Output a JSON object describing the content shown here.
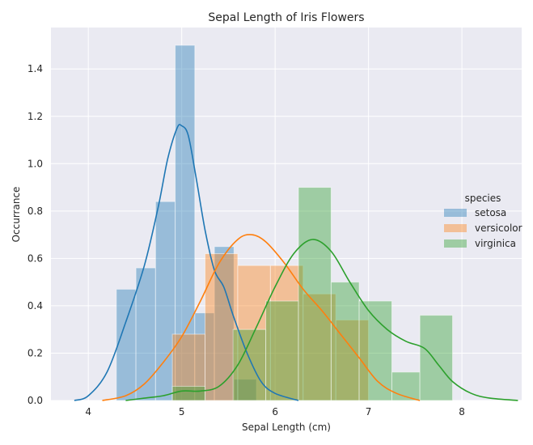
{
  "chart_data": {
    "type": "histogram",
    "title": "Sepal Length of Iris Flowers",
    "xlabel": "Sepal Length (cm)",
    "ylabel": "Occurrance",
    "xlim": [
      3.6,
      8.64
    ],
    "ylim": [
      0,
      1.575
    ],
    "xticks": [
      4,
      5,
      6,
      7,
      8
    ],
    "yticks": [
      0.0,
      0.2,
      0.4,
      0.6,
      0.8,
      1.0,
      1.2,
      1.4
    ],
    "grid": true,
    "legend": {
      "title": "species",
      "placement": "center-right"
    },
    "colors": {
      "setosa": "#1f77b4",
      "versicolor": "#ff7f0e",
      "virginica": "#2ca02c",
      "background": "#eaeaf2"
    },
    "series": [
      {
        "name": "setosa",
        "bins": [
          [
            4.3,
            4.51,
            0.47
          ],
          [
            4.51,
            4.72,
            0.56
          ],
          [
            4.72,
            4.93,
            0.84
          ],
          [
            4.93,
            5.14,
            1.5
          ],
          [
            5.14,
            5.35,
            0.37
          ],
          [
            5.35,
            5.56,
            0.65
          ],
          [
            5.56,
            5.8,
            0.09
          ]
        ],
        "kde": [
          [
            3.85,
            0.0
          ],
          [
            4.0,
            0.02
          ],
          [
            4.2,
            0.12
          ],
          [
            4.4,
            0.33
          ],
          [
            4.6,
            0.57
          ],
          [
            4.75,
            0.82
          ],
          [
            4.85,
            1.02
          ],
          [
            4.95,
            1.15
          ],
          [
            5.0,
            1.16
          ],
          [
            5.07,
            1.12
          ],
          [
            5.15,
            0.95
          ],
          [
            5.25,
            0.72
          ],
          [
            5.35,
            0.55
          ],
          [
            5.45,
            0.48
          ],
          [
            5.55,
            0.36
          ],
          [
            5.7,
            0.2
          ],
          [
            5.85,
            0.08
          ],
          [
            6.0,
            0.03
          ],
          [
            6.25,
            0.0
          ]
        ]
      },
      {
        "name": "versicolor",
        "bins": [
          [
            4.9,
            5.25,
            0.28
          ],
          [
            5.25,
            5.6,
            0.62
          ],
          [
            5.6,
            5.95,
            0.57
          ],
          [
            5.95,
            6.3,
            0.57
          ],
          [
            6.3,
            6.65,
            0.45
          ],
          [
            6.65,
            7.0,
            0.34
          ]
        ],
        "kde": [
          [
            4.15,
            0.0
          ],
          [
            4.4,
            0.02
          ],
          [
            4.6,
            0.07
          ],
          [
            4.8,
            0.16
          ],
          [
            5.0,
            0.27
          ],
          [
            5.2,
            0.42
          ],
          [
            5.4,
            0.58
          ],
          [
            5.6,
            0.68
          ],
          [
            5.75,
            0.7
          ],
          [
            5.9,
            0.67
          ],
          [
            6.1,
            0.58
          ],
          [
            6.3,
            0.47
          ],
          [
            6.5,
            0.38
          ],
          [
            6.7,
            0.28
          ],
          [
            6.9,
            0.18
          ],
          [
            7.1,
            0.08
          ],
          [
            7.3,
            0.03
          ],
          [
            7.55,
            0.0
          ]
        ]
      },
      {
        "name": "virginica",
        "bins": [
          [
            4.9,
            5.25,
            0.06
          ],
          [
            5.25,
            5.55,
            0.0
          ],
          [
            5.55,
            5.9,
            0.3
          ],
          [
            5.9,
            6.25,
            0.42
          ],
          [
            6.25,
            6.6,
            0.9
          ],
          [
            6.6,
            6.9,
            0.5
          ],
          [
            6.9,
            7.25,
            0.42
          ],
          [
            7.25,
            7.55,
            0.12
          ],
          [
            7.55,
            7.9,
            0.36
          ]
        ],
        "kde": [
          [
            4.4,
            0.0
          ],
          [
            4.6,
            0.01
          ],
          [
            4.8,
            0.02
          ],
          [
            5.0,
            0.04
          ],
          [
            5.2,
            0.04
          ],
          [
            5.4,
            0.06
          ],
          [
            5.6,
            0.15
          ],
          [
            5.8,
            0.31
          ],
          [
            6.0,
            0.48
          ],
          [
            6.2,
            0.62
          ],
          [
            6.4,
            0.68
          ],
          [
            6.6,
            0.63
          ],
          [
            6.8,
            0.5
          ],
          [
            7.0,
            0.38
          ],
          [
            7.2,
            0.3
          ],
          [
            7.4,
            0.25
          ],
          [
            7.6,
            0.22
          ],
          [
            7.75,
            0.15
          ],
          [
            7.9,
            0.08
          ],
          [
            8.1,
            0.03
          ],
          [
            8.3,
            0.01
          ],
          [
            8.6,
            0.0
          ]
        ]
      }
    ]
  }
}
